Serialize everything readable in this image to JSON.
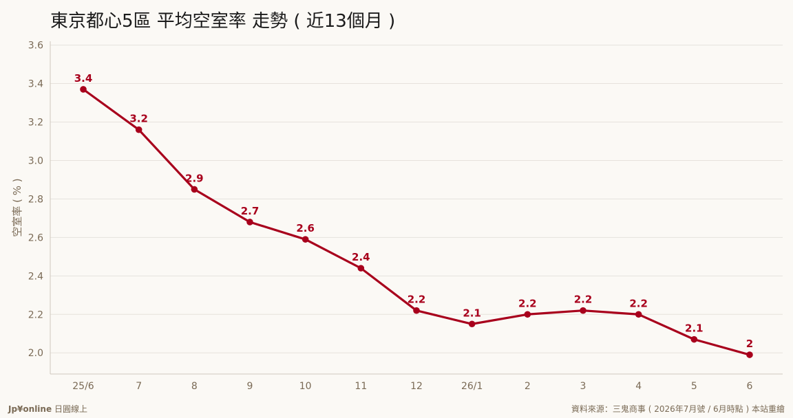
{
  "header": {
    "title": "東京都心5區 平均空室率 走勢 ( 近13個月 )"
  },
  "footer": {
    "brand": "Jp¥online",
    "brand_sub": "日圓線上",
    "source": "資料來源：三鬼商事 ( 2026年7月號 / 6月時點 ) 本站重繪"
  },
  "colors": {
    "line": "#a8001c",
    "grid": "#e6e2dc",
    "axis_text": "#7a6a55"
  },
  "chart_data": {
    "type": "line",
    "title": "東京都心5區 平均空室率 走勢 ( 近13個月 )",
    "xlabel": "",
    "ylabel": "空室率 ( % )",
    "categories": [
      "25/6",
      "7",
      "8",
      "9",
      "10",
      "11",
      "12",
      "26/1",
      "2",
      "3",
      "4",
      "5",
      "6"
    ],
    "values": [
      3.37,
      3.16,
      2.85,
      2.68,
      2.59,
      2.44,
      2.22,
      2.15,
      2.2,
      2.22,
      2.2,
      2.07,
      1.99
    ],
    "data_labels": [
      "3.4",
      "3.2",
      "2.9",
      "2.7",
      "2.6",
      "2.4",
      "2.2",
      "2.1",
      "2.2",
      "2.2",
      "2.2",
      "2.1",
      "2"
    ],
    "y_ticks": [
      "2.0",
      "2.2",
      "2.4",
      "2.6",
      "2.8",
      "3.0",
      "3.2",
      "3.4",
      "3.6"
    ],
    "ylim": [
      1.89,
      3.62
    ],
    "grid": true,
    "legend": "none"
  }
}
